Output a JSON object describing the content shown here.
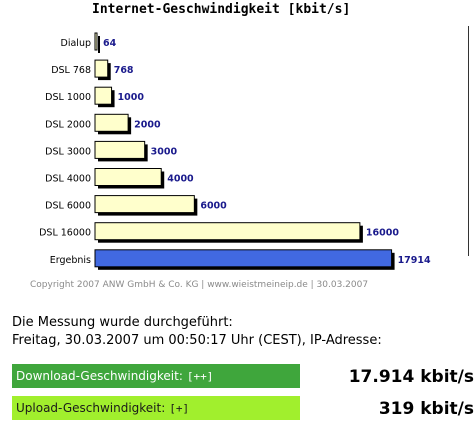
{
  "chart_data": {
    "type": "bar",
    "orientation": "horizontal",
    "title": "Internet-Geschwindigkeit [kbit/s]",
    "categories": [
      "Dialup",
      "DSL 768",
      "DSL 1000",
      "DSL 2000",
      "DSL 3000",
      "DSL 4000",
      "DSL 6000",
      "DSL 16000",
      "Ergebnis"
    ],
    "values": [
      64,
      768,
      1000,
      2000,
      3000,
      4000,
      6000,
      16000,
      17914
    ],
    "value_labels": [
      "64",
      "768",
      "1000",
      "2000",
      "3000",
      "4000",
      "6000",
      "16000",
      "17914"
    ],
    "xlim": [
      0,
      18000
    ],
    "grid": false,
    "legend": "none",
    "colors": {
      "reference_bar": "#ffffcc",
      "result_bar": "#4169e1",
      "value_label": "#1a1a8c"
    }
  },
  "footer": {
    "copyright": "Copyright 2007 ANW GmbH & Co. KG | www.wieistmeineip.de | 30.03.2007"
  },
  "measurement": {
    "heading": "Die Messung wurde durchgeführt:",
    "detail": "Freitag, 30.03.2007 um 00:50:17 Uhr (CEST), IP-Adresse:",
    "download": {
      "label": "Download-Geschwindigkeit:",
      "toggle": "[++]",
      "value": "17.914 kbit/s",
      "color": "#3fa63c"
    },
    "upload": {
      "label": "Upload-Geschwindigkeit:",
      "toggle": "[+]",
      "value": "319 kbit/s",
      "color": "#a1ef2d"
    }
  }
}
